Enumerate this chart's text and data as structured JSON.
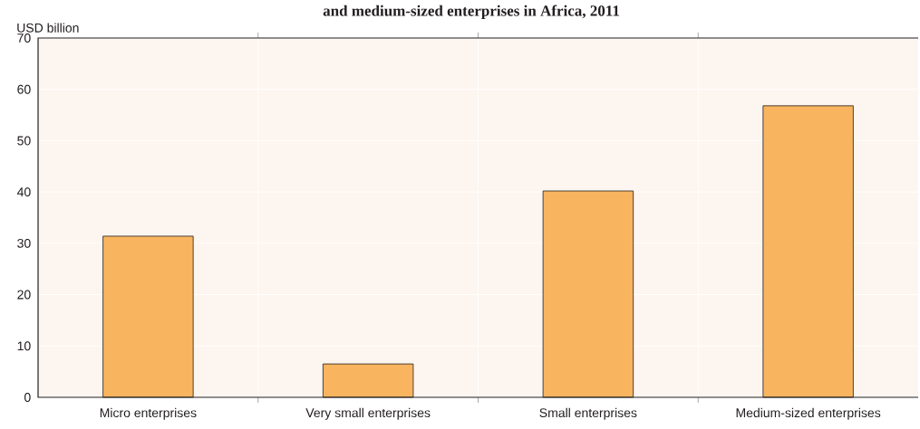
{
  "chart_data": {
    "type": "bar",
    "title": "and medium-sized enterprises in Africa, 2011",
    "ylabel": "USD billion",
    "categories": [
      "Micro enterprises",
      "Very small enterprises",
      "Small enterprises",
      "Medium-sized enterprises"
    ],
    "values": [
      31.4,
      6.5,
      40.2,
      56.8
    ],
    "color": "#f8b45f",
    "ylim": [
      0,
      70
    ],
    "yticks": [
      0,
      10,
      20,
      30,
      40,
      50,
      60,
      70
    ],
    "grid": true
  }
}
